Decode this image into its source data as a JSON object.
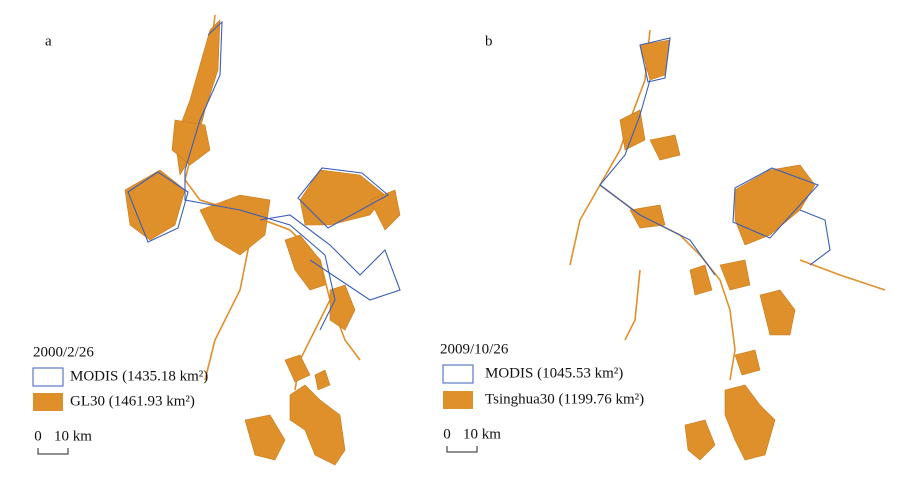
{
  "panels": [
    {
      "label": "a",
      "date": "2000/2/26",
      "legend": [
        "MODIS (1435.18 km²)",
        "GL30 (1461.93 km²)"
      ],
      "scale": [
        "0",
        "10 km"
      ]
    },
    {
      "label": "b",
      "date": "2009/10/26",
      "legend": [
        "MODIS (1045.53 km²)",
        "Tsinghua30 (1199.76 km²)"
      ],
      "scale": [
        "0",
        "10 km"
      ]
    }
  ]
}
